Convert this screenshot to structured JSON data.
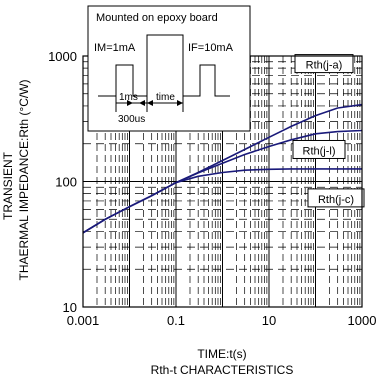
{
  "chart_data": {
    "type": "line",
    "title": "",
    "caption": "Rth-t CHARACTERISTICS",
    "xlabel": "TIME:t(s)",
    "ylabel": [
      "TRANSIENT",
      "THAERMAL IMPEDANCE:Rth (°C/W)"
    ],
    "x_scale": "log",
    "y_scale": "log",
    "xlim": [
      0.001,
      1000
    ],
    "ylim": [
      10,
      1000
    ],
    "x_ticks": [
      "0.001",
      "0.1",
      "10",
      "1000"
    ],
    "x_tick_values": [
      0.001,
      0.1,
      10,
      1000
    ],
    "y_ticks": [
      "1000",
      "100",
      "10"
    ],
    "y_tick_values": [
      1000,
      100,
      10
    ],
    "grid": true,
    "series": [
      {
        "name": "Rth(j-a)",
        "x": [
          0.001,
          0.003,
          0.01,
          0.03,
          0.1,
          0.3,
          1,
          3,
          10,
          30,
          100,
          300,
          1000
        ],
        "y": [
          39,
          50,
          63,
          77,
          98,
          118,
          147,
          180,
          225,
          275,
          335,
          385,
          410
        ]
      },
      {
        "name": "Rth(j-l)",
        "x": [
          0.001,
          0.003,
          0.01,
          0.03,
          0.1,
          0.3,
          1,
          3,
          10,
          30,
          100,
          300,
          1000
        ],
        "y": [
          39,
          50,
          63,
          77,
          98,
          117,
          140,
          164,
          190,
          215,
          240,
          250,
          255
        ]
      },
      {
        "name": "Rth(j-c)",
        "x": [
          0.001,
          0.003,
          0.01,
          0.03,
          0.1,
          0.3,
          1,
          3,
          10,
          30,
          100,
          300,
          1000
        ],
        "y": [
          39,
          50,
          63,
          77,
          98,
          110,
          118,
          123,
          125,
          126,
          126,
          126,
          126
        ]
      }
    ],
    "line_color": "#1a1a7a",
    "inset": {
      "title": "Mounted on epoxy board",
      "im_label": "IM=1mA",
      "if_label": "IF=10mA",
      "t1_label": "1ms",
      "time_label": "time",
      "t2_label": "300us"
    }
  }
}
